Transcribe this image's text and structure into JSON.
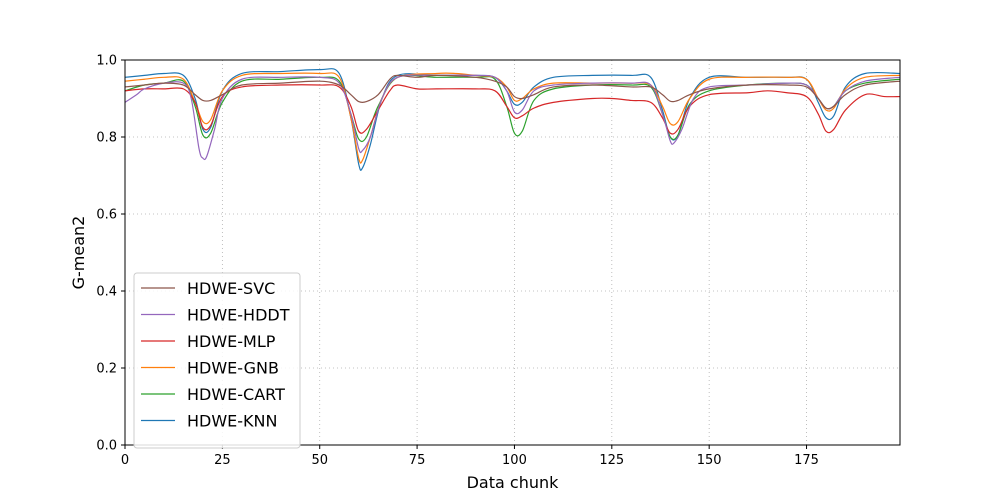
{
  "chart_data": {
    "type": "line",
    "xlabel": "Data chunk",
    "ylabel": "G-mean2",
    "xlim": [
      0,
      199
    ],
    "ylim": [
      0.0,
      1.0
    ],
    "x_ticks": [
      0,
      25,
      50,
      75,
      100,
      125,
      150,
      175
    ],
    "y_ticks": [
      0.0,
      0.2,
      0.4,
      0.6,
      0.8,
      1.0
    ],
    "x_tick_labels": [
      "0",
      "25",
      "50",
      "75",
      "100",
      "125",
      "150",
      "175"
    ],
    "y_tick_labels": [
      "0.0",
      "0.2",
      "0.4",
      "0.6",
      "0.8",
      "1.0"
    ],
    "grid": true,
    "grid_style": "dotted",
    "legend_position": "lower-left",
    "series": [
      {
        "name": "HDWE-SVC",
        "color": "#8c564b",
        "points": [
          [
            0,
            0.93
          ],
          [
            5,
            0.935
          ],
          [
            10,
            0.94
          ],
          [
            15,
            0.935
          ],
          [
            18,
            0.91
          ],
          [
            20,
            0.895
          ],
          [
            22,
            0.895
          ],
          [
            25,
            0.91
          ],
          [
            30,
            0.935
          ],
          [
            40,
            0.94
          ],
          [
            50,
            0.945
          ],
          [
            55,
            0.935
          ],
          [
            58,
            0.91
          ],
          [
            60,
            0.892
          ],
          [
            62,
            0.892
          ],
          [
            65,
            0.91
          ],
          [
            68,
            0.95
          ],
          [
            70,
            0.96
          ],
          [
            75,
            0.955
          ],
          [
            80,
            0.96
          ],
          [
            90,
            0.955
          ],
          [
            95,
            0.945
          ],
          [
            98,
            0.93
          ],
          [
            100,
            0.905
          ],
          [
            102,
            0.9
          ],
          [
            105,
            0.91
          ],
          [
            110,
            0.93
          ],
          [
            120,
            0.935
          ],
          [
            130,
            0.93
          ],
          [
            135,
            0.93
          ],
          [
            138,
            0.91
          ],
          [
            140,
            0.893
          ],
          [
            142,
            0.895
          ],
          [
            145,
            0.91
          ],
          [
            150,
            0.925
          ],
          [
            160,
            0.935
          ],
          [
            170,
            0.935
          ],
          [
            175,
            0.93
          ],
          [
            178,
            0.9
          ],
          [
            180,
            0.875
          ],
          [
            182,
            0.88
          ],
          [
            185,
            0.91
          ],
          [
            190,
            0.935
          ],
          [
            199,
            0.945
          ]
        ]
      },
      {
        "name": "HDWE-HDDT",
        "color": "#9467bd",
        "points": [
          [
            0,
            0.89
          ],
          [
            3,
            0.91
          ],
          [
            5,
            0.925
          ],
          [
            10,
            0.94
          ],
          [
            15,
            0.94
          ],
          [
            17,
            0.9
          ],
          [
            19,
            0.77
          ],
          [
            20,
            0.745
          ],
          [
            21,
            0.75
          ],
          [
            23,
            0.82
          ],
          [
            25,
            0.9
          ],
          [
            30,
            0.95
          ],
          [
            40,
            0.955
          ],
          [
            50,
            0.955
          ],
          [
            55,
            0.94
          ],
          [
            58,
            0.86
          ],
          [
            60,
            0.77
          ],
          [
            61,
            0.765
          ],
          [
            63,
            0.8
          ],
          [
            66,
            0.9
          ],
          [
            70,
            0.955
          ],
          [
            80,
            0.96
          ],
          [
            90,
            0.96
          ],
          [
            95,
            0.955
          ],
          [
            98,
            0.92
          ],
          [
            100,
            0.865
          ],
          [
            102,
            0.87
          ],
          [
            105,
            0.92
          ],
          [
            110,
            0.935
          ],
          [
            120,
            0.94
          ],
          [
            130,
            0.94
          ],
          [
            135,
            0.935
          ],
          [
            138,
            0.86
          ],
          [
            140,
            0.79
          ],
          [
            141,
            0.785
          ],
          [
            143,
            0.82
          ],
          [
            146,
            0.9
          ],
          [
            150,
            0.93
          ],
          [
            160,
            0.935
          ],
          [
            170,
            0.94
          ],
          [
            175,
            0.935
          ],
          [
            178,
            0.9
          ],
          [
            180,
            0.875
          ],
          [
            182,
            0.88
          ],
          [
            185,
            0.92
          ],
          [
            190,
            0.945
          ],
          [
            199,
            0.955
          ]
        ]
      },
      {
        "name": "HDWE-MLP",
        "color": "#d62728",
        "points": [
          [
            0,
            0.92
          ],
          [
            5,
            0.925
          ],
          [
            10,
            0.925
          ],
          [
            15,
            0.925
          ],
          [
            18,
            0.89
          ],
          [
            20,
            0.825
          ],
          [
            22,
            0.83
          ],
          [
            25,
            0.905
          ],
          [
            30,
            0.93
          ],
          [
            40,
            0.935
          ],
          [
            50,
            0.935
          ],
          [
            55,
            0.93
          ],
          [
            58,
            0.88
          ],
          [
            60,
            0.815
          ],
          [
            62,
            0.82
          ],
          [
            65,
            0.87
          ],
          [
            68,
            0.92
          ],
          [
            70,
            0.935
          ],
          [
            75,
            0.925
          ],
          [
            80,
            0.925
          ],
          [
            90,
            0.925
          ],
          [
            95,
            0.92
          ],
          [
            98,
            0.88
          ],
          [
            100,
            0.85
          ],
          [
            102,
            0.855
          ],
          [
            105,
            0.875
          ],
          [
            110,
            0.89
          ],
          [
            120,
            0.9
          ],
          [
            125,
            0.9
          ],
          [
            130,
            0.895
          ],
          [
            135,
            0.89
          ],
          [
            138,
            0.85
          ],
          [
            140,
            0.81
          ],
          [
            142,
            0.82
          ],
          [
            145,
            0.88
          ],
          [
            150,
            0.91
          ],
          [
            160,
            0.915
          ],
          [
            165,
            0.92
          ],
          [
            170,
            0.915
          ],
          [
            175,
            0.905
          ],
          [
            178,
            0.86
          ],
          [
            180,
            0.815
          ],
          [
            182,
            0.82
          ],
          [
            185,
            0.87
          ],
          [
            190,
            0.91
          ],
          [
            195,
            0.905
          ],
          [
            199,
            0.905
          ]
        ]
      },
      {
        "name": "HDWE-GNB",
        "color": "#ff7f0e",
        "points": [
          [
            0,
            0.945
          ],
          [
            5,
            0.95
          ],
          [
            10,
            0.955
          ],
          [
            15,
            0.95
          ],
          [
            18,
            0.89
          ],
          [
            20,
            0.84
          ],
          [
            22,
            0.845
          ],
          [
            25,
            0.92
          ],
          [
            30,
            0.96
          ],
          [
            40,
            0.965
          ],
          [
            50,
            0.965
          ],
          [
            55,
            0.955
          ],
          [
            58,
            0.85
          ],
          [
            60,
            0.745
          ],
          [
            61,
            0.74
          ],
          [
            63,
            0.8
          ],
          [
            66,
            0.9
          ],
          [
            70,
            0.955
          ],
          [
            80,
            0.965
          ],
          [
            85,
            0.965
          ],
          [
            90,
            0.96
          ],
          [
            95,
            0.955
          ],
          [
            98,
            0.93
          ],
          [
            100,
            0.895
          ],
          [
            102,
            0.9
          ],
          [
            105,
            0.925
          ],
          [
            110,
            0.94
          ],
          [
            120,
            0.94
          ],
          [
            130,
            0.94
          ],
          [
            135,
            0.935
          ],
          [
            138,
            0.88
          ],
          [
            140,
            0.835
          ],
          [
            142,
            0.84
          ],
          [
            145,
            0.9
          ],
          [
            150,
            0.95
          ],
          [
            160,
            0.955
          ],
          [
            170,
            0.955
          ],
          [
            175,
            0.95
          ],
          [
            178,
            0.9
          ],
          [
            180,
            0.87
          ],
          [
            182,
            0.875
          ],
          [
            185,
            0.925
          ],
          [
            190,
            0.955
          ],
          [
            199,
            0.96
          ]
        ]
      },
      {
        "name": "HDWE-CART",
        "color": "#2ca02c",
        "points": [
          [
            0,
            0.92
          ],
          [
            5,
            0.935
          ],
          [
            10,
            0.94
          ],
          [
            15,
            0.945
          ],
          [
            18,
            0.88
          ],
          [
            20,
            0.805
          ],
          [
            22,
            0.81
          ],
          [
            25,
            0.89
          ],
          [
            30,
            0.945
          ],
          [
            40,
            0.95
          ],
          [
            50,
            0.955
          ],
          [
            55,
            0.945
          ],
          [
            58,
            0.86
          ],
          [
            60,
            0.795
          ],
          [
            62,
            0.8
          ],
          [
            65,
            0.88
          ],
          [
            70,
            0.955
          ],
          [
            80,
            0.955
          ],
          [
            90,
            0.955
          ],
          [
            95,
            0.95
          ],
          [
            98,
            0.88
          ],
          [
            100,
            0.81
          ],
          [
            102,
            0.815
          ],
          [
            105,
            0.895
          ],
          [
            110,
            0.925
          ],
          [
            120,
            0.935
          ],
          [
            130,
            0.935
          ],
          [
            135,
            0.93
          ],
          [
            138,
            0.86
          ],
          [
            140,
            0.8
          ],
          [
            142,
            0.805
          ],
          [
            145,
            0.885
          ],
          [
            150,
            0.92
          ],
          [
            160,
            0.935
          ],
          [
            170,
            0.94
          ],
          [
            175,
            0.935
          ],
          [
            178,
            0.9
          ],
          [
            180,
            0.875
          ],
          [
            182,
            0.88
          ],
          [
            185,
            0.92
          ],
          [
            190,
            0.94
          ],
          [
            199,
            0.95
          ]
        ]
      },
      {
        "name": "HDWE-KNN",
        "color": "#1f77b4",
        "points": [
          [
            0,
            0.955
          ],
          [
            5,
            0.96
          ],
          [
            10,
            0.965
          ],
          [
            15,
            0.96
          ],
          [
            18,
            0.9
          ],
          [
            20,
            0.82
          ],
          [
            22,
            0.825
          ],
          [
            25,
            0.92
          ],
          [
            30,
            0.965
          ],
          [
            40,
            0.97
          ],
          [
            50,
            0.975
          ],
          [
            55,
            0.965
          ],
          [
            58,
            0.85
          ],
          [
            60,
            0.73
          ],
          [
            61,
            0.72
          ],
          [
            63,
            0.78
          ],
          [
            66,
            0.9
          ],
          [
            70,
            0.96
          ],
          [
            80,
            0.96
          ],
          [
            90,
            0.96
          ],
          [
            95,
            0.955
          ],
          [
            98,
            0.92
          ],
          [
            100,
            0.885
          ],
          [
            102,
            0.89
          ],
          [
            105,
            0.93
          ],
          [
            110,
            0.955
          ],
          [
            120,
            0.96
          ],
          [
            130,
            0.96
          ],
          [
            135,
            0.955
          ],
          [
            138,
            0.87
          ],
          [
            140,
            0.8
          ],
          [
            142,
            0.805
          ],
          [
            145,
            0.9
          ],
          [
            150,
            0.955
          ],
          [
            160,
            0.955
          ],
          [
            170,
            0.955
          ],
          [
            175,
            0.95
          ],
          [
            178,
            0.89
          ],
          [
            180,
            0.85
          ],
          [
            182,
            0.855
          ],
          [
            185,
            0.93
          ],
          [
            190,
            0.965
          ],
          [
            199,
            0.965
          ]
        ]
      }
    ]
  }
}
